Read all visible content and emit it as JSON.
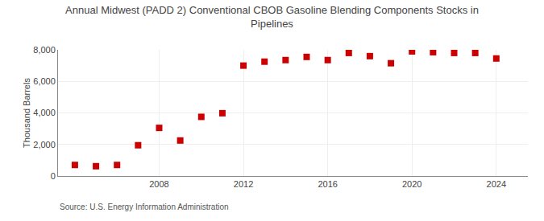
{
  "chart_data": {
    "type": "scatter",
    "title": "Annual Midwest (PADD 2) Conventional CBOB Gasoline Blending Components Stocks in Pipelines",
    "ylabel": "Thousand Barrels",
    "annotations": [
      "Source: U.S. Energy Information Administration"
    ],
    "x": [
      2004,
      2005,
      2006,
      2007,
      2008,
      2009,
      2010,
      2011,
      2012,
      2013,
      2014,
      2015,
      2016,
      2017,
      2018,
      2019,
      2020,
      2021,
      2022,
      2023,
      2024
    ],
    "values": [
      700,
      620,
      700,
      1950,
      3050,
      2250,
      3750,
      3980,
      7000,
      7250,
      7350,
      7550,
      7350,
      7800,
      7600,
      7150,
      7900,
      7850,
      7800,
      7800,
      7450
    ],
    "color": "#cc0000",
    "marker": "square",
    "xlim": [
      2003.2,
      2025.5
    ],
    "xticks": [
      2008,
      2012,
      2016,
      2020,
      2024
    ],
    "ylim": [
      0,
      8000
    ],
    "yticks": [
      0,
      {
        "value": 2000,
        "label": "2,000"
      },
      {
        "value": 4000,
        "label": "4,000"
      },
      {
        "value": 6000,
        "label": "6,000"
      },
      {
        "value": 8000,
        "label": "8,000"
      }
    ],
    "grid": true
  }
}
